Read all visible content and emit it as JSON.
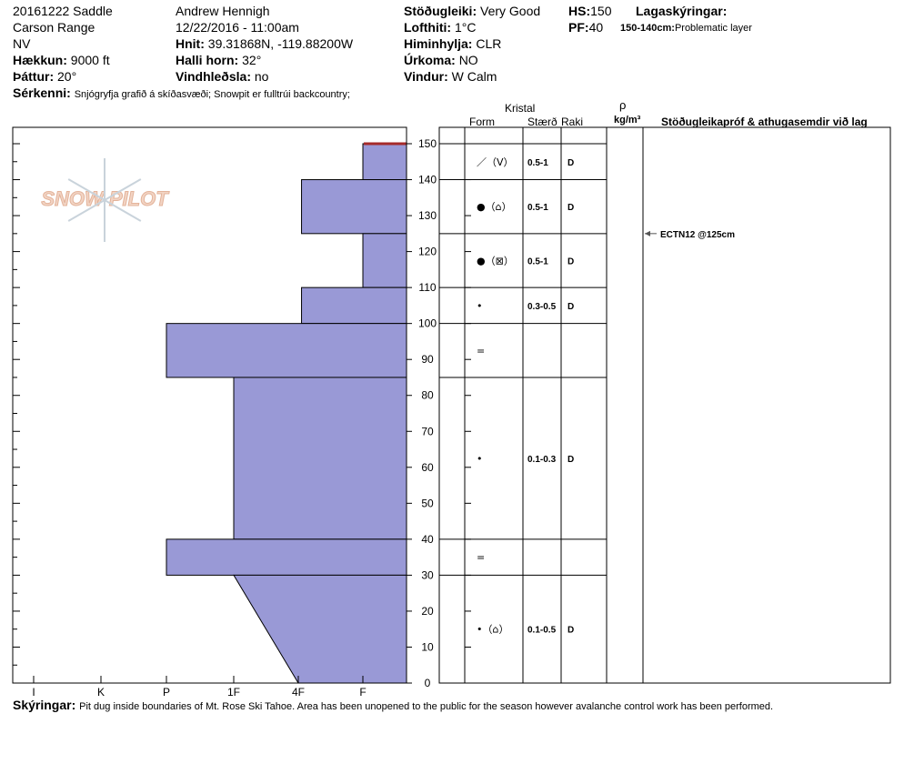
{
  "header": {
    "col1": [
      "20161222 Saddle",
      "Carson Range",
      "NV"
    ],
    "elevation_label": "Hækkun:",
    "elevation_value": "9000 ft",
    "aspect_label": "Þáttur:",
    "aspect_value": "20°",
    "features_label": "Sérkenni:",
    "features_value": "Snjógryfja grafið á skíðasvæði;  Snowpit er fulltrúi backcountry;",
    "observer": "Andrew Hennigh",
    "datetime": "12/22/2016 - 11:00am",
    "coords_label": "Hnit:",
    "coords_value": "39.31868N, -119.88200W",
    "slope_label": "Halli horn:",
    "slope_value": "32°",
    "wind_loading_label": "Vindhleðsla:",
    "wind_loading_value": "no",
    "stability_label": "Stöðugleiki:",
    "stability_value": "Very Good",
    "air_temp_label": "Lofthiti:",
    "air_temp_value": "1°C",
    "sky_label": "Himinhylja:",
    "sky_value": "CLR",
    "precip_label": "Úrkoma:",
    "precip_value": "NO",
    "wind_label": "Vindur:",
    "wind_value": "W Calm",
    "hs_label": "HS:",
    "hs_value": "150",
    "pf_label": "PF:",
    "pf_value": "40",
    "layer_notes_label": "Lagaskýringar:",
    "layer_note_range": "150-140cm:",
    "layer_note_text": "Problematic layer"
  },
  "footer": {
    "label": "Skýringar:",
    "text": "Pit dug inside boundaries of Mt. Rose Ski Tahoe. Area has been unopened to the public for the season however avalanche control work has been performed."
  },
  "logo_text": "SNOW PILOT",
  "columns": {
    "crystal": "Kristal",
    "form": "Form",
    "size": "Stærð",
    "moisture": "Raki",
    "density_symbol": "ρ",
    "density_unit": "kg/m³",
    "stability_tests": "Stöðugleikapróf & athugasemdir við lag"
  },
  "colors": {
    "fill": "#9999d6",
    "highlight": "#a52a2a",
    "arrow": "#555555"
  },
  "chart_data": {
    "type": "bar",
    "description_axes": "snow profile hand hardness",
    "hardness_ticks": [
      "I",
      "K",
      "P",
      "1F",
      "4F",
      "F"
    ],
    "height_ticks": [
      0,
      10,
      20,
      30,
      40,
      50,
      60,
      70,
      80,
      90,
      100,
      110,
      120,
      130,
      140,
      150
    ],
    "ylim": [
      0,
      150
    ],
    "layers": [
      {
        "top": 150,
        "bottom": 140,
        "hardness": "F",
        "hardness_index": 5
      },
      {
        "top": 140,
        "bottom": 125,
        "hardness": "F+",
        "hardness_index": 4.05
      },
      {
        "top": 125,
        "bottom": 110,
        "hardness": "F",
        "hardness_index": 5
      },
      {
        "top": 110,
        "bottom": 100,
        "hardness": "F+",
        "hardness_index": 4.05
      },
      {
        "top": 100,
        "bottom": 85,
        "hardness": "K",
        "hardness_index": 2
      },
      {
        "top": 85,
        "bottom": 40,
        "hardness": "1F",
        "hardness_index": 3
      },
      {
        "top": 40,
        "bottom": 30,
        "hardness": "K",
        "hardness_index": 2
      },
      {
        "top": 30,
        "bottom": 0,
        "hardness": "1F to 4F",
        "hardness_index_top": 3,
        "hardness_index_bottom": 4
      }
    ],
    "crystals": [
      {
        "top": 150,
        "bottom": 140,
        "form": "／（V）",
        "size": "0.5-1",
        "moisture": "D"
      },
      {
        "top": 140,
        "bottom": 125,
        "form": "●（⌂）",
        "size": "0.5-1",
        "moisture": "D"
      },
      {
        "top": 125,
        "bottom": 110,
        "form": "●（⊠）",
        "size": "0.5-1",
        "moisture": "D"
      },
      {
        "top": 110,
        "bottom": 100,
        "form": "•",
        "size": "0.3-0.5",
        "moisture": "D"
      },
      {
        "top": 100,
        "bottom": 85,
        "form": "=",
        "size": "",
        "moisture": ""
      },
      {
        "top": 85,
        "bottom": 40,
        "form": "•",
        "size": "0.1-0.3",
        "moisture": "D"
      },
      {
        "top": 40,
        "bottom": 30,
        "form": "=",
        "size": "",
        "moisture": ""
      },
      {
        "top": 30,
        "bottom": 0,
        "form": "•（⌂）",
        "size": "0.1-0.5",
        "moisture": "D"
      }
    ],
    "stability_tests": [
      {
        "height": 125,
        "text": "ECTN12 @125cm"
      }
    ]
  }
}
